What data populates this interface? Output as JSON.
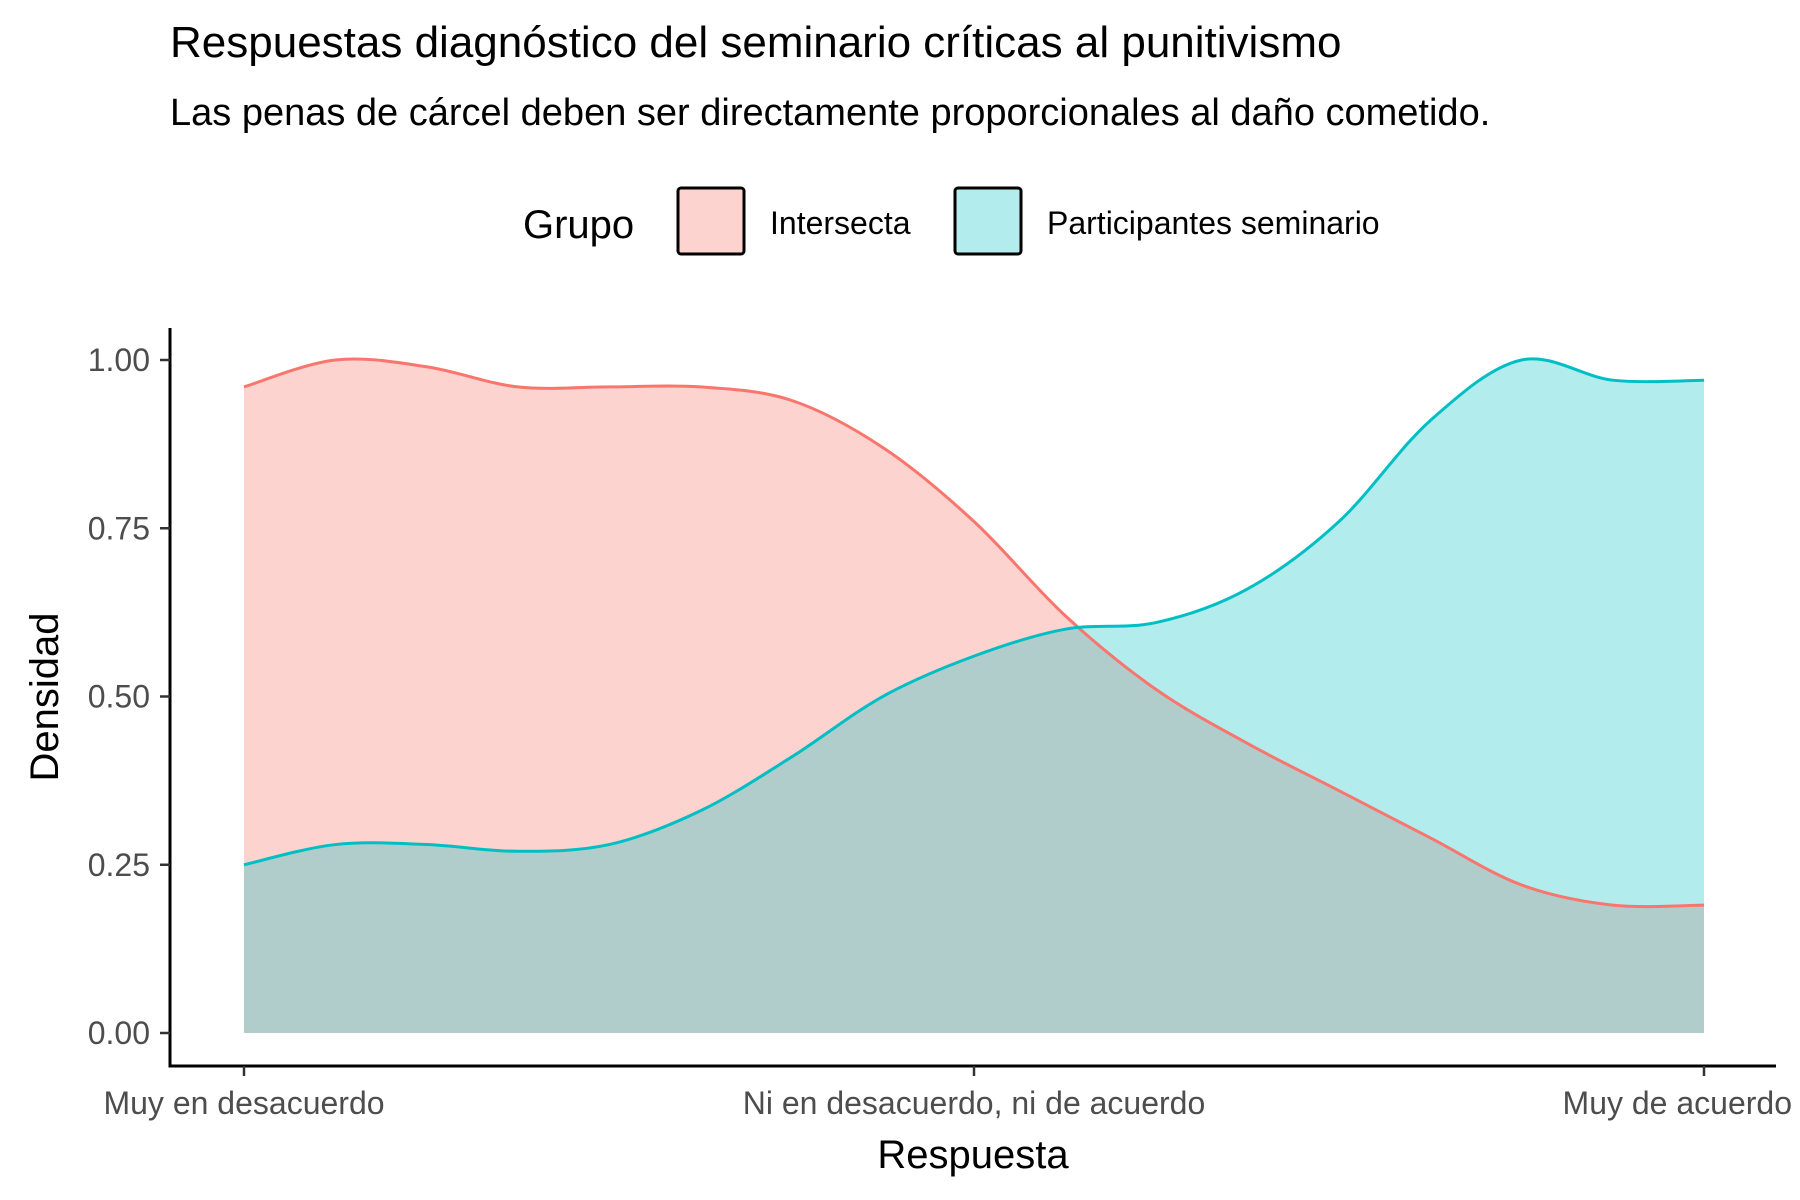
{
  "chart_data": {
    "type": "area",
    "title": "Respuestas diagnóstico del seminario críticas al punitivismo",
    "subtitle": "Las penas de cárcel deben ser directamente proporcionales al daño cometido.",
    "xlabel": "Respuesta",
    "ylabel": "Densidad",
    "legend": {
      "title": "Grupo",
      "position": "top"
    },
    "grid": false,
    "xlim": [
      1,
      5
    ],
    "ylim": [
      0,
      1
    ],
    "x_ticks": [
      {
        "value": 1,
        "label": "Muy en desacuerdo"
      },
      {
        "value": 3,
        "label": "Ni en desacuerdo, ni de acuerdo"
      },
      {
        "value": 5,
        "label": "Muy de acuerdo"
      }
    ],
    "y_ticks": [
      {
        "value": 0.0,
        "label": "0.00"
      },
      {
        "value": 0.25,
        "label": "0.25"
      },
      {
        "value": 0.5,
        "label": "0.50"
      },
      {
        "value": 0.75,
        "label": "0.75"
      },
      {
        "value": 1.0,
        "label": "1.00"
      }
    ],
    "x": [
      1.0,
      1.25,
      1.5,
      1.75,
      2.0,
      2.25,
      2.5,
      2.75,
      3.0,
      3.25,
      3.5,
      3.75,
      4.0,
      4.25,
      4.5,
      4.75,
      5.0
    ],
    "series": [
      {
        "name": "Intersecta",
        "line_color": "#f8766d",
        "fill_color": "#f8766d",
        "fill_opacity": 0.32,
        "values": [
          0.96,
          1.0,
          0.99,
          0.96,
          0.96,
          0.96,
          0.94,
          0.87,
          0.76,
          0.62,
          0.51,
          0.43,
          0.36,
          0.29,
          0.22,
          0.19,
          0.19
        ]
      },
      {
        "name": "Participantes seminario",
        "line_color": "#00bfc4",
        "fill_color": "#00bfc4",
        "fill_opacity": 0.3,
        "values": [
          0.25,
          0.28,
          0.28,
          0.27,
          0.28,
          0.33,
          0.41,
          0.5,
          0.56,
          0.6,
          0.61,
          0.66,
          0.76,
          0.91,
          1.0,
          0.97,
          0.97
        ]
      }
    ]
  }
}
